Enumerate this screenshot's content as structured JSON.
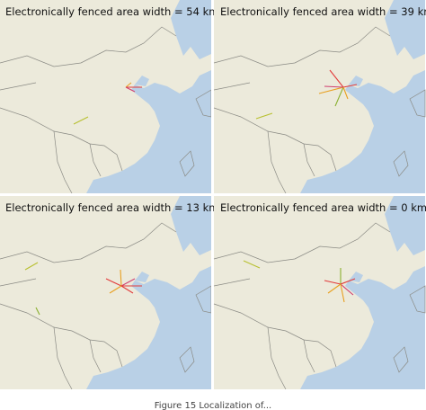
{
  "panels": [
    {
      "title": "Electronically fenced area width = 54 km"
    },
    {
      "title": "Electronically fenced area width = 39 km"
    },
    {
      "title": "Electronically fenced area width = 13 km"
    },
    {
      "title": "Electronically fenced area width = 0 km"
    }
  ],
  "caption": "Figure 15 Localization of..."
}
